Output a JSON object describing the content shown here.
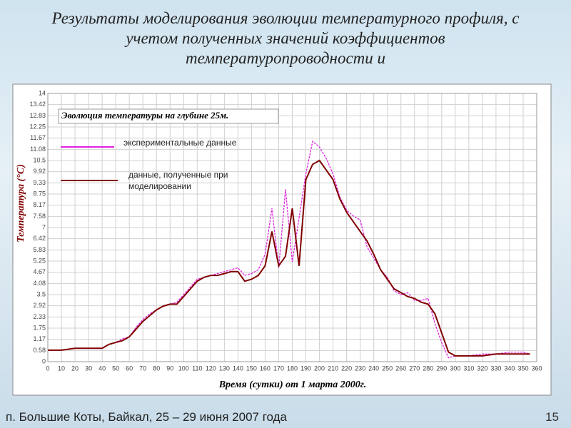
{
  "slide": {
    "title": "Результаты моделирования эволюции температурного профиля, с учетом полученных значений коэффициентов температуропроводности и",
    "footer": "п. Большие Коты, Байкал,  25 – 29 июня 2007  года",
    "page_number": "15"
  },
  "chart_data": {
    "type": "line",
    "title": "Эволюция температуры на глубине 25м.",
    "x_label": "Время (сутки) от 1 марта 2000г.",
    "y_label": "Температура (°C)",
    "x": [
      0,
      10,
      20,
      30,
      40,
      45,
      50,
      55,
      60,
      65,
      70,
      75,
      80,
      85,
      90,
      95,
      100,
      105,
      110,
      115,
      120,
      125,
      130,
      135,
      140,
      145,
      150,
      155,
      160,
      165,
      170,
      175,
      180,
      185,
      190,
      195,
      200,
      205,
      210,
      215,
      220,
      225,
      230,
      235,
      240,
      245,
      250,
      255,
      260,
      265,
      270,
      275,
      280,
      285,
      290,
      295,
      300,
      310,
      320,
      330,
      340,
      350,
      355
    ],
    "series": [
      {
        "name": "экспериментальные данные",
        "color": "#e020e0",
        "dashed": true,
        "values": [
          0.6,
          0.6,
          0.7,
          0.7,
          0.7,
          0.9,
          1.0,
          1.2,
          1.3,
          1.8,
          2.2,
          2.5,
          2.7,
          2.9,
          3.0,
          3.1,
          3.5,
          3.9,
          4.3,
          4.4,
          4.5,
          4.6,
          4.7,
          4.8,
          4.9,
          4.5,
          4.6,
          4.8,
          5.6,
          8.0,
          4.9,
          9.0,
          5.2,
          7.5,
          9.8,
          11.5,
          11.2,
          10.6,
          9.8,
          8.6,
          7.9,
          7.6,
          7.4,
          6.0,
          5.4,
          4.8,
          4.4,
          3.7,
          3.5,
          3.6,
          3.2,
          3.2,
          3.3,
          2.0,
          1.0,
          0.2,
          0.3,
          0.3,
          0.4,
          0.4,
          0.5,
          0.5,
          0.4
        ]
      },
      {
        "name": "данные, полученные при моделировании",
        "color": "#800000",
        "dashed": false,
        "values": [
          0.6,
          0.6,
          0.7,
          0.7,
          0.7,
          0.9,
          1.0,
          1.1,
          1.3,
          1.7,
          2.1,
          2.4,
          2.7,
          2.9,
          3.0,
          3.0,
          3.4,
          3.8,
          4.2,
          4.4,
          4.5,
          4.5,
          4.6,
          4.7,
          4.7,
          4.2,
          4.3,
          4.5,
          5.0,
          6.8,
          5.0,
          5.5,
          8.0,
          5.0,
          9.5,
          10.3,
          10.5,
          10.0,
          9.5,
          8.5,
          7.8,
          7.3,
          6.8,
          6.3,
          5.6,
          4.8,
          4.3,
          3.8,
          3.6,
          3.4,
          3.3,
          3.1,
          3.0,
          2.5,
          1.5,
          0.5,
          0.3,
          0.3,
          0.3,
          0.4,
          0.4,
          0.4,
          0.4
        ]
      }
    ],
    "xlim": [
      0,
      360
    ],
    "xticks": [
      0,
      10,
      20,
      30,
      40,
      50,
      60,
      70,
      80,
      90,
      100,
      110,
      120,
      130,
      140,
      150,
      160,
      170,
      180,
      190,
      200,
      210,
      220,
      230,
      240,
      250,
      260,
      270,
      280,
      290,
      300,
      310,
      320,
      330,
      340,
      350,
      360
    ],
    "ylim": [
      0,
      14
    ],
    "yticks": [
      0,
      0.58,
      1.17,
      1.75,
      2.33,
      2.92,
      3.5,
      4.08,
      4.67,
      5.25,
      5.83,
      6.42,
      7,
      7.58,
      8.17,
      8.75,
      9.33,
      9.92,
      10.5,
      11.08,
      11.67,
      12.25,
      12.83,
      13.42,
      14
    ],
    "grid": true
  }
}
